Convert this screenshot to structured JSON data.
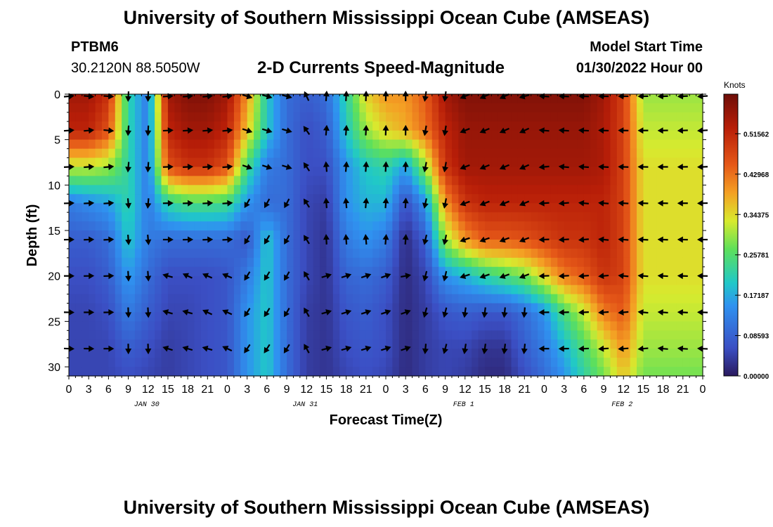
{
  "header": {
    "title": "University of Southern Mississippi Ocean Cube (AMSEAS)",
    "station": "PTBM6",
    "coords": "30.2120N  88.5050W",
    "plot_title": "2-D Currents Speed-Magnitude",
    "model_start_label": "Model Start Time",
    "model_start": "01/30/2022 Hour 00"
  },
  "footer": {
    "title": "University of Southern Mississippi Ocean Cube (AMSEAS)"
  },
  "chart_data": {
    "type": "heatmap",
    "title": "2-D Currents Speed-Magnitude",
    "xlabel": "Forecast Time(Z)",
    "ylabel": "Depth (ft)",
    "x_ticks": [
      "0",
      "3",
      "6",
      "9",
      "12",
      "15",
      "18",
      "21",
      "0",
      "3",
      "6",
      "9",
      "12",
      "15",
      "18",
      "21",
      "0",
      "3",
      "6",
      "9",
      "12",
      "15",
      "18",
      "21",
      "0",
      "3",
      "6",
      "9",
      "12",
      "15",
      "18",
      "21",
      "0"
    ],
    "date_labels": [
      {
        "label": "JAN 30",
        "hour": 12
      },
      {
        "label": "JAN 31",
        "hour": 36
      },
      {
        "label": "FEB 1",
        "hour": 60
      },
      {
        "label": "FEB 2",
        "hour": 84
      }
    ],
    "xlim": [
      0,
      96
    ],
    "ylim": [
      0,
      31
    ],
    "y_ticks": [
      0,
      5,
      10,
      15,
      20,
      25,
      30
    ],
    "colorbar": {
      "label": "Knots",
      "range": [
        0,
        0.6
      ],
      "ticks": [
        "0.51562",
        "0.42968",
        "0.34375",
        "0.25781",
        "0.17187",
        "0.08593",
        "0.00000"
      ],
      "tick_values": [
        0.51562,
        0.42968,
        0.34375,
        0.25781,
        0.17187,
        0.08593,
        0.0
      ]
    },
    "arrow_times": [
      0,
      3,
      6,
      9,
      12,
      15,
      18,
      21,
      24,
      27,
      30,
      33,
      36,
      39,
      42,
      45,
      48,
      51,
      54,
      57,
      60,
      63,
      66,
      69,
      72,
      75,
      78,
      81,
      84,
      87,
      90,
      93,
      96
    ],
    "arrow_depths": [
      0,
      4,
      8,
      12,
      16,
      20,
      24,
      28
    ],
    "speed_knots": {
      "hours": [
        0,
        3,
        6,
        9,
        12,
        15,
        18,
        21,
        24,
        27,
        30,
        33,
        36,
        39,
        42,
        45,
        48,
        51,
        54,
        57,
        60,
        63,
        66,
        69,
        72,
        75,
        78,
        81,
        84,
        87,
        90,
        93,
        96
      ],
      "depths_ft": [
        0,
        4,
        8,
        12,
        16,
        20,
        24,
        28,
        31
      ],
      "values": [
        [
          0.55,
          0.55,
          0.5,
          0.22,
          0.12,
          0.55,
          0.58,
          0.58,
          0.55,
          0.4,
          0.2,
          0.1,
          0.08,
          0.1,
          0.22,
          0.35,
          0.4,
          0.4,
          0.45,
          0.55,
          0.58,
          0.58,
          0.58,
          0.58,
          0.58,
          0.58,
          0.58,
          0.55,
          0.48,
          0.3,
          0.3,
          0.3,
          0.3
        ],
        [
          0.52,
          0.52,
          0.46,
          0.22,
          0.12,
          0.52,
          0.55,
          0.55,
          0.52,
          0.36,
          0.2,
          0.1,
          0.06,
          0.08,
          0.2,
          0.3,
          0.35,
          0.38,
          0.43,
          0.52,
          0.56,
          0.56,
          0.56,
          0.56,
          0.56,
          0.56,
          0.56,
          0.54,
          0.48,
          0.32,
          0.32,
          0.32,
          0.32
        ],
        [
          0.32,
          0.32,
          0.3,
          0.22,
          0.12,
          0.46,
          0.5,
          0.5,
          0.46,
          0.24,
          0.12,
          0.1,
          0.06,
          0.06,
          0.15,
          0.2,
          0.22,
          0.16,
          0.3,
          0.5,
          0.55,
          0.55,
          0.55,
          0.55,
          0.55,
          0.55,
          0.55,
          0.54,
          0.48,
          0.34,
          0.34,
          0.34,
          0.34
        ],
        [
          0.12,
          0.14,
          0.16,
          0.22,
          0.12,
          0.22,
          0.25,
          0.25,
          0.24,
          0.15,
          0.1,
          0.1,
          0.05,
          0.04,
          0.15,
          0.18,
          0.18,
          0.06,
          0.15,
          0.4,
          0.5,
          0.52,
          0.52,
          0.52,
          0.52,
          0.52,
          0.52,
          0.52,
          0.48,
          0.34,
          0.34,
          0.34,
          0.34
        ],
        [
          0.08,
          0.08,
          0.1,
          0.2,
          0.12,
          0.1,
          0.1,
          0.1,
          0.1,
          0.07,
          0.2,
          0.1,
          0.05,
          0.03,
          0.12,
          0.15,
          0.12,
          0.02,
          0.08,
          0.3,
          0.4,
          0.45,
          0.45,
          0.46,
          0.48,
          0.5,
          0.5,
          0.52,
          0.48,
          0.34,
          0.34,
          0.34,
          0.34
        ],
        [
          0.06,
          0.06,
          0.08,
          0.16,
          0.1,
          0.06,
          0.06,
          0.06,
          0.07,
          0.12,
          0.2,
          0.1,
          0.05,
          0.03,
          0.09,
          0.1,
          0.08,
          0.02,
          0.05,
          0.15,
          0.18,
          0.22,
          0.25,
          0.28,
          0.35,
          0.42,
          0.45,
          0.5,
          0.48,
          0.34,
          0.34,
          0.34,
          0.34
        ],
        [
          0.05,
          0.05,
          0.06,
          0.12,
          0.08,
          0.05,
          0.05,
          0.06,
          0.07,
          0.15,
          0.2,
          0.1,
          0.04,
          0.03,
          0.07,
          0.08,
          0.06,
          0.02,
          0.04,
          0.07,
          0.08,
          0.07,
          0.07,
          0.1,
          0.15,
          0.25,
          0.32,
          0.42,
          0.45,
          0.32,
          0.32,
          0.32,
          0.32
        ],
        [
          0.05,
          0.05,
          0.05,
          0.08,
          0.06,
          0.04,
          0.05,
          0.06,
          0.07,
          0.15,
          0.2,
          0.1,
          0.04,
          0.03,
          0.06,
          0.07,
          0.06,
          0.02,
          0.04,
          0.05,
          0.05,
          0.03,
          0.03,
          0.08,
          0.12,
          0.18,
          0.25,
          0.32,
          0.4,
          0.3,
          0.3,
          0.3,
          0.3
        ],
        [
          0.05,
          0.05,
          0.05,
          0.06,
          0.05,
          0.04,
          0.05,
          0.06,
          0.07,
          0.15,
          0.2,
          0.1,
          0.04,
          0.03,
          0.05,
          0.06,
          0.05,
          0.02,
          0.04,
          0.05,
          0.04,
          0.02,
          0.02,
          0.06,
          0.1,
          0.15,
          0.22,
          0.28,
          0.36,
          0.28,
          0.28,
          0.28,
          0.28
        ]
      ]
    }
  }
}
